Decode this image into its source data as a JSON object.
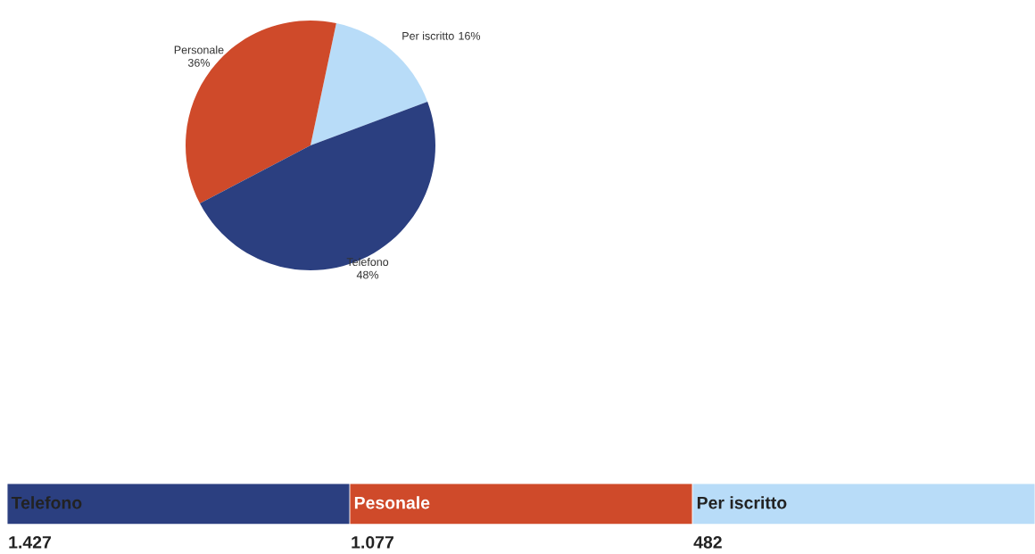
{
  "chart_data": [
    {
      "type": "pie",
      "categories": [
        "Per iscritto",
        "Personale",
        "Telefono"
      ],
      "values": [
        16,
        36,
        48
      ],
      "value_labels": [
        "16%",
        "36%",
        "48%"
      ],
      "colors": [
        "#b8dcf8",
        "#cf4a2a",
        "#2b3f80"
      ]
    },
    {
      "type": "other",
      "categories": [
        "Telefono",
        "Pesonale",
        "Per iscritto"
      ],
      "value_labels": [
        "1.427",
        "1.077",
        "482"
      ],
      "colors": [
        "#2b3f80",
        "#cf4a2a",
        "#b8dcf8"
      ]
    }
  ]
}
